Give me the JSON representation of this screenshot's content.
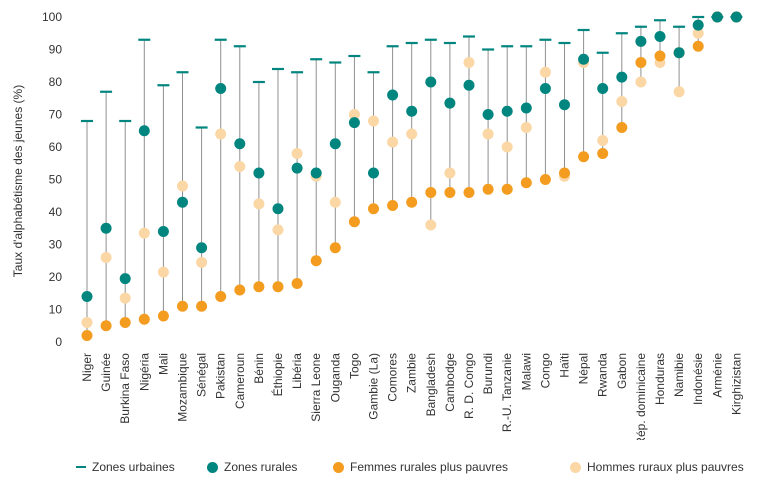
{
  "chart_data": {
    "type": "scatter",
    "ylabel": "Taux d'alphabétisme des jeunes (%)",
    "ylim": [
      0,
      100
    ],
    "yticks": [
      0,
      10,
      20,
      30,
      40,
      50,
      60,
      70,
      80,
      90,
      100
    ],
    "grid": false,
    "legend_position": "bottom",
    "categories": [
      "Niger",
      "Guinée",
      "Burkina Faso",
      "Nigéria",
      "Mali",
      "Mozambique",
      "Sénégal",
      "Pakistan",
      "Cameroun",
      "Bénin",
      "Éthiopie",
      "Libéria",
      "Sierra Leone",
      "Ouganda",
      "Togo",
      "Gambie (La)",
      "Comores",
      "Zambie",
      "Bangladesh",
      "Cambodge",
      "R. D. Congo",
      "Burundi",
      "R.-U. Tanzanie",
      "Malawi",
      "Congo",
      "Haïti",
      "Népal",
      "Rwanda",
      "Gabon",
      "Rép. dominicaine",
      "Honduras",
      "Namibie",
      "Indonésie",
      "Arménie",
      "Kirghizistan"
    ],
    "series": [
      {
        "name": "Zones urbaines",
        "marker": "dash",
        "color": "#00857f",
        "values": [
          68,
          77,
          68,
          93,
          79,
          83,
          66,
          93,
          91,
          80,
          84,
          83,
          87,
          86,
          88,
          83,
          91,
          92,
          93,
          92,
          94,
          90,
          91,
          91,
          93,
          92,
          96,
          89,
          95,
          97,
          99,
          97,
          100,
          100,
          100
        ]
      },
      {
        "name": "Zones rurales",
        "marker": "circle",
        "color": "#00857f",
        "values": [
          14,
          35,
          19.5,
          65,
          34,
          43,
          29,
          78,
          61,
          52,
          41,
          53.5,
          52,
          61,
          67.5,
          52,
          76,
          71,
          80,
          73.5,
          79,
          70,
          71,
          72,
          78,
          73,
          87,
          78,
          81.5,
          92.5,
          94,
          89,
          97.5,
          100,
          100
        ]
      },
      {
        "name": "Femmes rurales plus pauvres",
        "marker": "circle",
        "color": "#f39c1f",
        "values": [
          2,
          5,
          6,
          7,
          8,
          11,
          11,
          14,
          16,
          17,
          17,
          18,
          25,
          29,
          37,
          41,
          42,
          43,
          46,
          46,
          46,
          47,
          47,
          49,
          50,
          52,
          57,
          58,
          66,
          86,
          88,
          89,
          91,
          100,
          100
        ]
      },
      {
        "name": "Hommes ruraux plus pauvres",
        "marker": "circle",
        "color": "#fbd7a6",
        "values": [
          6,
          26,
          13.5,
          33.5,
          21.5,
          48,
          24.5,
          64,
          54,
          42.5,
          34.5,
          58,
          51,
          43,
          70,
          68,
          61.5,
          64,
          36,
          52,
          86,
          64,
          60,
          66,
          83,
          51,
          86,
          62,
          74,
          80,
          86,
          77,
          95,
          100,
          100
        ]
      }
    ]
  }
}
